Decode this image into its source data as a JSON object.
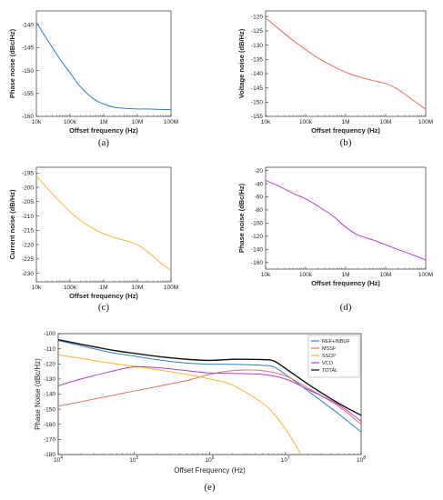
{
  "chart_data": [
    {
      "id": "a",
      "type": "line",
      "panel_label": "(a)",
      "xlabel": "Offset frequency (Hz)",
      "ylabel": "Phase noise (dBc/Hz)",
      "xscale": "log",
      "xlim": [
        10000,
        100000000
      ],
      "ylim": [
        -160,
        -137
      ],
      "xticks": [
        {
          "v": 10000,
          "label": "10k"
        },
        {
          "v": 100000,
          "label": "100k"
        },
        {
          "v": 1000000,
          "label": "1M"
        },
        {
          "v": 10000000,
          "label": "10M"
        },
        {
          "v": 100000000,
          "label": "100M"
        }
      ],
      "yticks": [
        {
          "v": -140,
          "label": "-140"
        },
        {
          "v": -145,
          "label": "-145"
        },
        {
          "v": -150,
          "label": "-150"
        },
        {
          "v": -155,
          "label": "-155"
        },
        {
          "v": -160,
          "label": "-160"
        }
      ],
      "color": "#2f7fc1",
      "x": [
        10000,
        20000,
        50000,
        100000,
        200000,
        500000,
        1000000,
        2000000,
        5000000,
        10000000,
        20000000,
        50000000,
        100000000
      ],
      "y": [
        -139.5,
        -143,
        -147.5,
        -150.5,
        -153.5,
        -156.2,
        -157.3,
        -158.0,
        -158.3,
        -158.4,
        -158.4,
        -158.5,
        -158.5
      ]
    },
    {
      "id": "b",
      "type": "line",
      "panel_label": "(b)",
      "xlabel": "Offset frequency (Hz)",
      "ylabel": "Voltage noise (dB/Hz)",
      "xscale": "log",
      "xlim": [
        10000,
        100000000
      ],
      "ylim": [
        -155,
        -118
      ],
      "xticks": [
        {
          "v": 10000,
          "label": "10k"
        },
        {
          "v": 100000,
          "label": "100k"
        },
        {
          "v": 1000000,
          "label": "1M"
        },
        {
          "v": 10000000,
          "label": "10M"
        },
        {
          "v": 100000000,
          "label": "100M"
        }
      ],
      "yticks": [
        {
          "v": -120,
          "label": "-120"
        },
        {
          "v": -125,
          "label": "-125"
        },
        {
          "v": -130,
          "label": "-130"
        },
        {
          "v": -135,
          "label": "-135"
        },
        {
          "v": -140,
          "label": "-140"
        },
        {
          "v": -145,
          "label": "-145"
        },
        {
          "v": -150,
          "label": "-150"
        },
        {
          "v": -155,
          "label": "-155"
        }
      ],
      "color": "#e8706a",
      "x": [
        10000,
        20000,
        50000,
        100000,
        200000,
        500000,
        1000000,
        2000000,
        5000000,
        10000000,
        20000000,
        50000000,
        100000000
      ],
      "y": [
        -120.5,
        -124,
        -128.5,
        -131.5,
        -134.5,
        -137.5,
        -139.5,
        -141.0,
        -142.5,
        -143.5,
        -145.5,
        -149.5,
        -152.5
      ]
    },
    {
      "id": "c",
      "type": "line",
      "panel_label": "(c)",
      "xlabel": "Offset frequency (Hz)",
      "ylabel": "Current noise (dB/Hz)",
      "xscale": "log",
      "xlim": [
        10000,
        100000000
      ],
      "ylim": [
        -233,
        -193
      ],
      "xticks": [
        {
          "v": 10000,
          "label": "10k"
        },
        {
          "v": 100000,
          "label": "100k"
        },
        {
          "v": 1000000,
          "label": "1M"
        },
        {
          "v": 10000000,
          "label": "10M"
        },
        {
          "v": 100000000,
          "label": "100M"
        }
      ],
      "yticks": [
        {
          "v": -195,
          "label": "-195"
        },
        {
          "v": -200,
          "label": "-200"
        },
        {
          "v": -205,
          "label": "-205"
        },
        {
          "v": -210,
          "label": "-210"
        },
        {
          "v": -215,
          "label": "-215"
        },
        {
          "v": -220,
          "label": "-220"
        },
        {
          "v": -225,
          "label": "-225"
        },
        {
          "v": -230,
          "label": "-230"
        }
      ],
      "color": "#f1b83a",
      "x": [
        10000,
        20000,
        50000,
        100000,
        200000,
        500000,
        1000000,
        2000000,
        5000000,
        10000000,
        20000000,
        50000000,
        100000000
      ],
      "y": [
        -196,
        -200,
        -205,
        -208.5,
        -211.5,
        -214.5,
        -216.2,
        -217.5,
        -218.8,
        -220.0,
        -222.5,
        -226.5,
        -229.0
      ]
    },
    {
      "id": "d",
      "type": "line",
      "panel_label": "(d)",
      "xlabel": "Offset frequency (Hz)",
      "ylabel": "Phase noise (dBc/Hz)",
      "xscale": "log",
      "xlim": [
        10000,
        100000000
      ],
      "ylim": [
        -170,
        -15
      ],
      "xticks": [
        {
          "v": 10000,
          "label": "10k"
        },
        {
          "v": 100000,
          "label": "100k"
        },
        {
          "v": 1000000,
          "label": "1M"
        },
        {
          "v": 10000000,
          "label": "10M"
        },
        {
          "v": 100000000,
          "label": "100M"
        }
      ],
      "yticks": [
        {
          "v": -20,
          "label": "-20"
        },
        {
          "v": -40,
          "label": "-40"
        },
        {
          "v": -60,
          "label": "-60"
        },
        {
          "v": -80,
          "label": "-80"
        },
        {
          "v": -100,
          "label": "-100"
        },
        {
          "v": -120,
          "label": "-120"
        },
        {
          "v": -140,
          "label": "-140"
        },
        {
          "v": -160,
          "label": "-160"
        }
      ],
      "color": "#b23fd1",
      "x": [
        10000,
        20000,
        50000,
        100000,
        200000,
        500000,
        1000000,
        2000000,
        5000000,
        10000000,
        20000000,
        50000000,
        100000000
      ],
      "y": [
        -35,
        -43,
        -55,
        -63,
        -74,
        -90,
        -106,
        -118,
        -126,
        -133,
        -140,
        -149,
        -156
      ]
    },
    {
      "id": "e",
      "type": "line",
      "panel_label": "(e)",
      "xlabel": "Offset Frequency (Hz)",
      "ylabel": "Phase Noise (dBc/Hz)",
      "xscale": "log",
      "xlim": [
        10000,
        100000000
      ],
      "ylim": [
        -180,
        -100
      ],
      "grid": false,
      "legend": "top-right",
      "xticks": [
        {
          "v": 10000,
          "label": "10",
          "exp": "4"
        },
        {
          "v": 100000,
          "label": "10",
          "exp": "5"
        },
        {
          "v": 1000000,
          "label": "10",
          "exp": "6"
        },
        {
          "v": 10000000,
          "label": "10",
          "exp": "7"
        },
        {
          "v": 100000000,
          "label": "10",
          "exp": "8"
        }
      ],
      "yticks": [
        {
          "v": -100,
          "label": "-100"
        },
        {
          "v": -110,
          "label": "-110"
        },
        {
          "v": -120,
          "label": "-120"
        },
        {
          "v": -130,
          "label": "-130"
        },
        {
          "v": -140,
          "label": "-140"
        },
        {
          "v": -150,
          "label": "-150"
        },
        {
          "v": -160,
          "label": "-160"
        },
        {
          "v": -170,
          "label": "-170"
        },
        {
          "v": -180,
          "label": "-180"
        }
      ],
      "series": [
        {
          "name": "REF+INBUF",
          "color": "#2f7fc1",
          "x": [
            10000,
            20000,
            50000,
            100000,
            200000,
            500000,
            1000000,
            2000000,
            5000000,
            7000000,
            10000000,
            20000000,
            50000000,
            100000000
          ],
          "y": [
            -104.5,
            -108,
            -112.5,
            -114.8,
            -117.2,
            -119.5,
            -120.2,
            -120.3,
            -121.0,
            -122.0,
            -127.0,
            -138.0,
            -153.0,
            -165.0
          ]
        },
        {
          "name": "MSSF",
          "color": "#e8706a",
          "x": [
            10000,
            20000,
            50000,
            100000,
            200000,
            500000,
            1000000,
            2000000,
            5000000,
            10000000,
            20000000,
            50000000,
            100000000
          ],
          "y": [
            -148.0,
            -145.0,
            -141.0,
            -138.0,
            -135.0,
            -131.0,
            -127.0,
            -124.5,
            -124.5,
            -128.0,
            -136.0,
            -148.0,
            -160.0
          ]
        },
        {
          "name": "SSCP",
          "color": "#f1b83a",
          "x": [
            10000,
            20000,
            50000,
            100000,
            200000,
            500000,
            1000000,
            2000000,
            5000000,
            7000000,
            10000000,
            13000000,
            16000000
          ],
          "y": [
            -114.0,
            -116.5,
            -119.5,
            -121.5,
            -123.8,
            -127.0,
            -130.0,
            -134.0,
            -146.0,
            -153.0,
            -163.0,
            -172.0,
            -180.0
          ]
        },
        {
          "name": "VCO",
          "color": "#b23fd1",
          "x": [
            10000,
            20000,
            50000,
            100000,
            200000,
            500000,
            1000000,
            2000000,
            5000000,
            10000000,
            20000000,
            50000000,
            100000000
          ],
          "y": [
            -134.5,
            -130.0,
            -125.0,
            -122.0,
            -122.5,
            -124.5,
            -126.0,
            -126.3,
            -127.0,
            -130.0,
            -137.0,
            -147.0,
            -158.0
          ]
        },
        {
          "name": "TOTAL",
          "color": "#111111",
          "x": [
            10000,
            20000,
            50000,
            100000,
            200000,
            500000,
            1000000,
            2000000,
            5000000,
            7000000,
            10000000,
            20000000,
            50000000,
            100000000
          ],
          "y": [
            -104.0,
            -107.0,
            -110.8,
            -113.0,
            -115.0,
            -117.0,
            -117.7,
            -117.0,
            -117.2,
            -118.0,
            -123.0,
            -133.5,
            -146.0,
            -154.0
          ]
        }
      ]
    }
  ]
}
